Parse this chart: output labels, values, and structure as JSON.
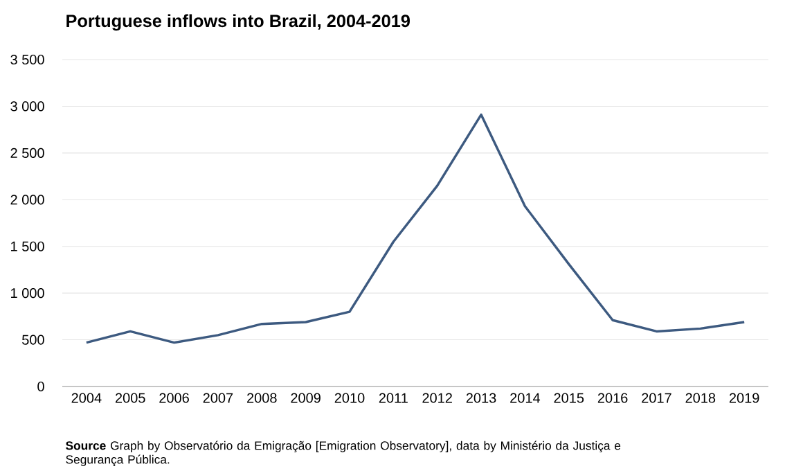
{
  "chart_data": {
    "type": "line",
    "title": "Portuguese inflows into Brazil, 2004-2019",
    "categories": [
      "2004",
      "2005",
      "2006",
      "2007",
      "2008",
      "2009",
      "2010",
      "2011",
      "2012",
      "2013",
      "2014",
      "2015",
      "2016",
      "2017",
      "2018",
      "2019"
    ],
    "series": [
      {
        "color": "#3d5a80",
        "values": [
          470,
          590,
          470,
          550,
          670,
          690,
          800,
          1550,
          2150,
          2910,
          1930,
          1310,
          710,
          590,
          620,
          690
        ]
      }
    ],
    "ylim": [
      0,
      3500
    ],
    "yticks": [
      0,
      500,
      {
        "value": 1000,
        "label": "1 000"
      },
      {
        "value": 1500,
        "label": "1 500"
      },
      {
        "value": 2000,
        "label": "2 000"
      },
      {
        "value": 2500,
        "label": "2 500"
      },
      {
        "value": 3000,
        "label": "3 000"
      },
      {
        "value": 3500,
        "label": "3 500"
      }
    ],
    "grid": "y",
    "annotations": [
      "**Source** Graph by Observatório da Emigração [Emigration Observatory], data by Ministério da Justiça e Segurança Pública."
    ]
  }
}
